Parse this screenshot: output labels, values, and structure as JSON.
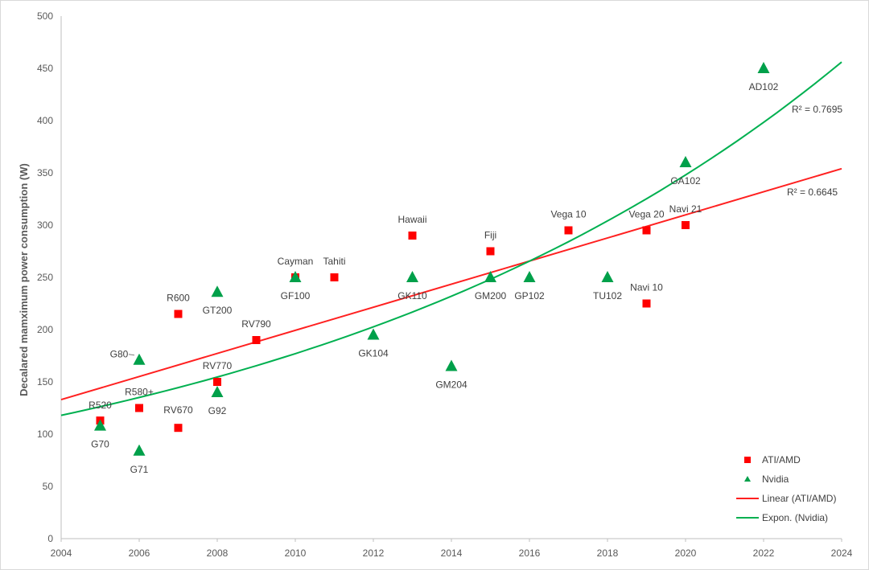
{
  "chart_data": {
    "type": "scatter",
    "title": "",
    "xlabel": "",
    "ylabel": "Decalared mamximum power consumption (W)",
    "xlim": [
      2004,
      2024
    ],
    "ylim": [
      0,
      500
    ],
    "xticks": [
      2004,
      2006,
      2008,
      2010,
      2012,
      2014,
      2016,
      2018,
      2020,
      2022,
      2024
    ],
    "yticks": [
      0,
      50,
      100,
      150,
      200,
      250,
      300,
      350,
      400,
      450,
      500
    ],
    "grid": false,
    "legend_position": "bottom-right",
    "series": [
      {
        "name": "ATI/AMD",
        "marker": "square",
        "color": "#ff0000",
        "points": [
          {
            "x": 2005,
            "y": 113,
            "label": "R520"
          },
          {
            "x": 2006,
            "y": 125,
            "label": "R580+"
          },
          {
            "x": 2007,
            "y": 215,
            "label": "R600"
          },
          {
            "x": 2007,
            "y": 106,
            "label": "RV670"
          },
          {
            "x": 2008,
            "y": 150,
            "label": "RV770"
          },
          {
            "x": 2009,
            "y": 190,
            "label": "RV790"
          },
          {
            "x": 2010,
            "y": 250,
            "label": "Cayman"
          },
          {
            "x": 2011,
            "y": 250,
            "label": "Tahiti"
          },
          {
            "x": 2013,
            "y": 290,
            "label": "Hawaii"
          },
          {
            "x": 2015,
            "y": 275,
            "label": "Fiji"
          },
          {
            "x": 2017,
            "y": 295,
            "label": "Vega 10"
          },
          {
            "x": 2019,
            "y": 295,
            "label": "Vega 20"
          },
          {
            "x": 2019,
            "y": 225,
            "label": "Navi 10"
          },
          {
            "x": 2020,
            "y": 300,
            "label": "Navi 21"
          }
        ]
      },
      {
        "name": "Nvidia",
        "marker": "triangle",
        "color": "#00a04a",
        "points": [
          {
            "x": 2005,
            "y": 108,
            "label": "G70"
          },
          {
            "x": 2006,
            "y": 84,
            "label": "G71"
          },
          {
            "x": 2006,
            "y": 171,
            "label": "G80"
          },
          {
            "x": 2008,
            "y": 236,
            "label": "GT200"
          },
          {
            "x": 2008,
            "y": 140,
            "label": "G92"
          },
          {
            "x": 2010,
            "y": 250,
            "label": "GF100"
          },
          {
            "x": 2012,
            "y": 195,
            "label": "GK104"
          },
          {
            "x": 2013,
            "y": 250,
            "label": "GK110"
          },
          {
            "x": 2014,
            "y": 165,
            "label": "GM204"
          },
          {
            "x": 2015,
            "y": 250,
            "label": "GM200"
          },
          {
            "x": 2016,
            "y": 250,
            "label": "GP102"
          },
          {
            "x": 2018,
            "y": 250,
            "label": "TU102"
          },
          {
            "x": 2020,
            "y": 360,
            "label": "GA102"
          },
          {
            "x": 2022,
            "y": 450,
            "label": "AD102"
          }
        ]
      }
    ],
    "trendlines": [
      {
        "name": "Linear (ATI/AMD)",
        "kind": "linear",
        "color": "#ff2020",
        "points": [
          {
            "x": 2004,
            "y": 133
          },
          {
            "x": 2024,
            "y": 354
          }
        ],
        "r2_label": "R² = 0.6645"
      },
      {
        "name": "Expon. (Nvidia)",
        "kind": "exponential",
        "color": "#00b050",
        "points": [
          {
            "x": 2004,
            "y": 118
          },
          {
            "x": 2024,
            "y": 456
          }
        ],
        "r2_label": "R² = 0.7695"
      }
    ]
  }
}
